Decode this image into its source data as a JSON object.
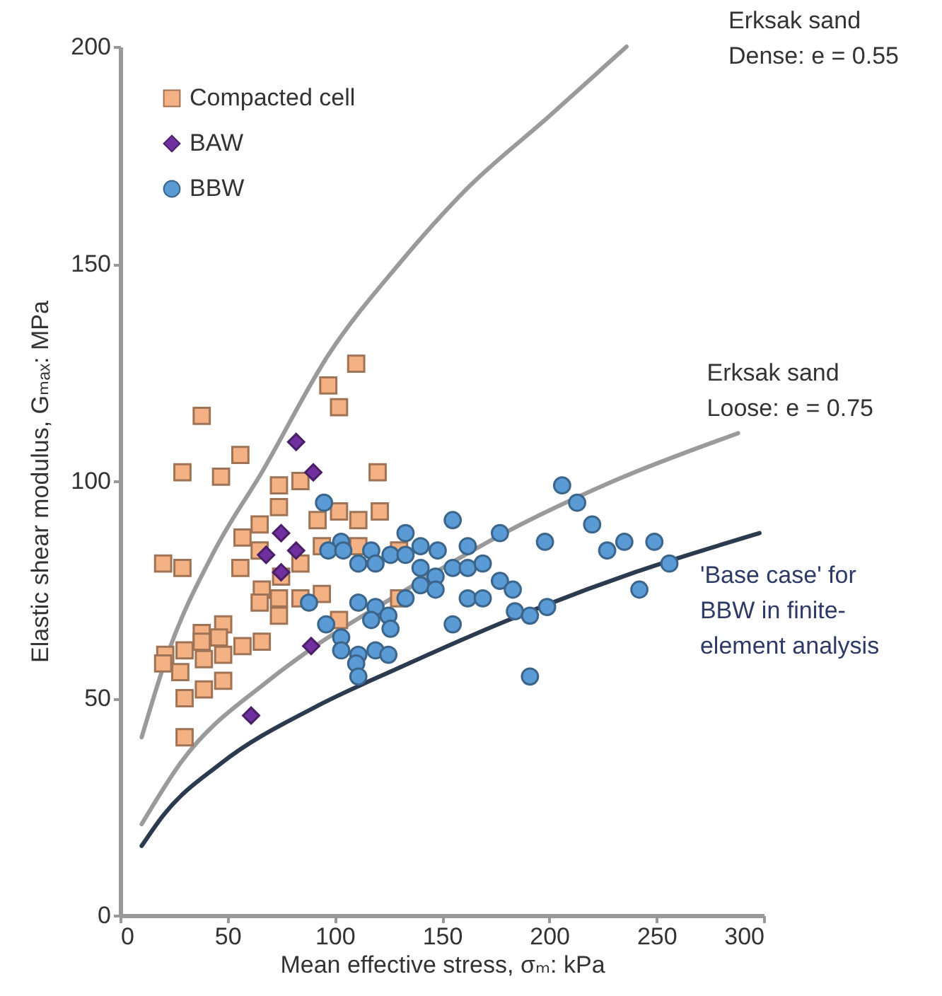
{
  "chart_data": {
    "type": "scatter",
    "xlabel": "Mean effective stress, σₘ: kPa",
    "ylabel": "Elastic shear modulus, Gₘₐₓ: MPa",
    "xlim": [
      0,
      300
    ],
    "xticks": [
      0,
      50,
      100,
      150,
      200,
      250,
      300
    ],
    "ylim": [
      0,
      200
    ],
    "yticks": [
      0,
      50,
      100,
      150,
      200
    ],
    "legend": "top left",
    "series": [
      {
        "name": "Compacted cell",
        "color": "#f4b183",
        "marker": "square",
        "x": [
          20,
          29,
          38,
          56,
          29,
          47,
          74,
          84,
          74,
          65,
          92,
          102,
          57,
          65,
          56,
          84,
          94,
          66,
          65,
          74,
          84,
          94,
          74,
          102,
          97,
          102,
          110,
          48,
          38,
          46,
          38,
          21,
          20,
          30,
          39,
          48,
          57,
          66,
          28,
          48,
          39,
          30,
          30,
          120,
          111,
          121,
          111,
          130,
          75,
          130
        ],
        "values": [
          81,
          80,
          115,
          106,
          102,
          101,
          99,
          100,
          94,
          90,
          91,
          93,
          87,
          84,
          80,
          81,
          85,
          75,
          72,
          73,
          73,
          74,
          69,
          68,
          122,
          117,
          127,
          67,
          65,
          64,
          63,
          60,
          58,
          61,
          59,
          60,
          62,
          63,
          56,
          54,
          52,
          50,
          41,
          102,
          91,
          93,
          85,
          84,
          78,
          73
        ]
      },
      {
        "name": "BAW",
        "color": "#7030a0",
        "marker": "diamond",
        "x": [
          82,
          90,
          75,
          68,
          82,
          75,
          89,
          61
        ],
        "values": [
          109,
          102,
          88,
          83,
          84,
          79,
          62,
          46
        ]
      },
      {
        "name": "BBW",
        "color": "#5b9bd5",
        "marker": "circle",
        "x": [
          95,
          155,
          133,
          177,
          103,
          97,
          104,
          117,
          126,
          133,
          140,
          148,
          162,
          111,
          119,
          140,
          147,
          155,
          162,
          169,
          177,
          140,
          147,
          162,
          169,
          133,
          88,
          111,
          119,
          117,
          125,
          126,
          96,
          155,
          103,
          103,
          119,
          125,
          111,
          110,
          111,
          206,
          213,
          220,
          198,
          235,
          249,
          227,
          256,
          183,
          242,
          184,
          191,
          199,
          191
        ],
        "values": [
          95,
          91,
          88,
          88,
          86,
          84,
          84,
          84,
          83,
          83,
          85,
          84,
          85,
          81,
          81,
          80,
          78,
          80,
          80,
          81,
          77,
          76,
          75,
          73,
          73,
          73,
          72,
          72,
          71,
          68,
          69,
          66,
          67,
          67,
          64,
          61,
          61,
          60,
          60,
          58,
          55,
          99,
          95,
          90,
          86,
          86,
          86,
          84,
          81,
          75,
          75,
          70,
          69,
          71,
          55
        ]
      },
      {
        "type": "line",
        "color": "#9a9a9a",
        "x": [
          10,
          22,
          44,
          66,
          97,
          130,
          161,
          200,
          236
        ],
        "values": [
          41,
          60,
          84,
          102,
          129,
          150,
          167,
          184,
          200
        ]
      },
      {
        "type": "line",
        "color": "#9a9a9a",
        "x": [
          10,
          28,
          69,
          88,
          130,
          179,
          230,
          288
        ],
        "values": [
          21,
          35,
          54,
          61,
          74,
          88,
          100,
          111
        ]
      },
      {
        "type": "line",
        "color": "#2b3a4e",
        "x": [
          10,
          20,
          47,
          91,
          130,
          181,
          240,
          298
        ],
        "values": [
          16,
          23,
          35,
          48,
          57,
          68,
          79,
          88
        ]
      }
    ],
    "annotations": [
      "Erksak sand\nDense: e = 0.55",
      {
        "text": "Erksak sand\nLoose: e = 0.75",
        "x": 288,
        "y": 111
      },
      {
        "text": "'Base case' for\nBBW in finite-\nelement analysis",
        "x": 298,
        "y": 88
      }
    ]
  }
}
